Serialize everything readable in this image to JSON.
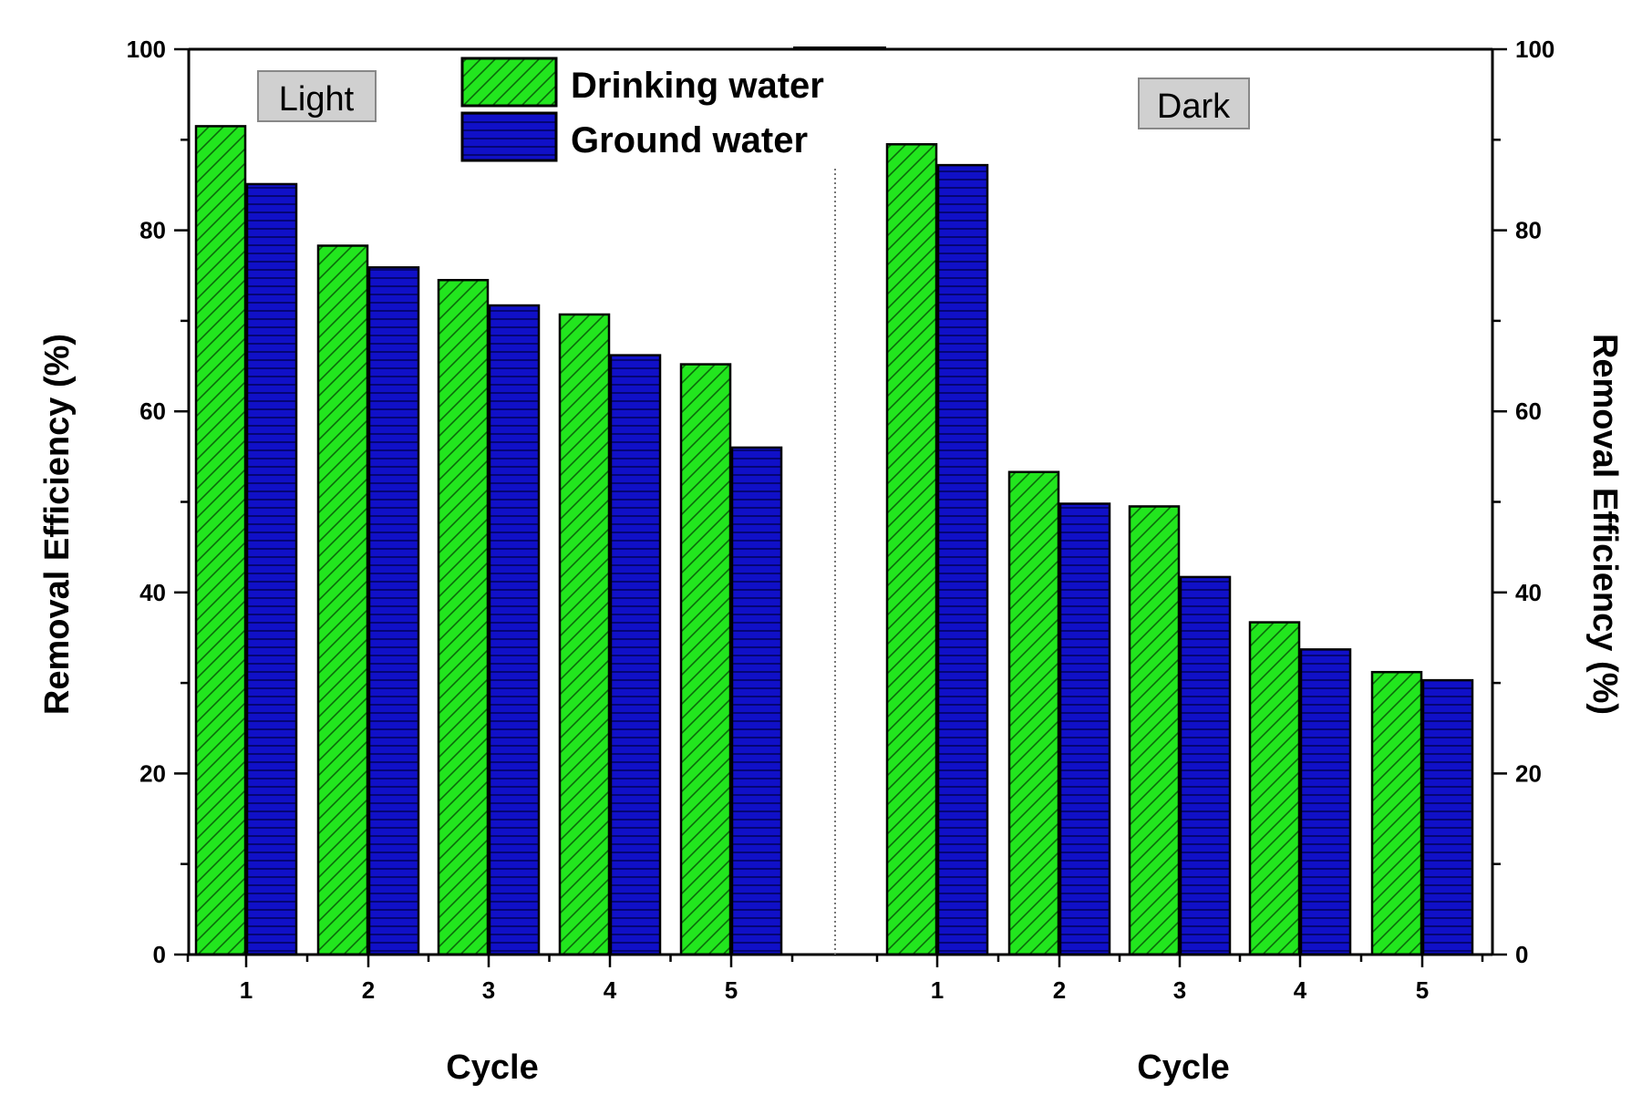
{
  "chart_data": {
    "type": "bar",
    "categories": [
      "1",
      "2",
      "3",
      "4",
      "5"
    ],
    "panels": [
      {
        "label": "Light",
        "xlabel": "Cycle",
        "series": [
          {
            "name": "Drinking water",
            "values": [
              91.5,
              78.3,
              74.5,
              70.7,
              65.2
            ]
          },
          {
            "name": "Ground water",
            "values": [
              85.1,
              75.9,
              71.7,
              66.2,
              56.0
            ]
          }
        ]
      },
      {
        "label": "Dark",
        "xlabel": "Cycle",
        "series": [
          {
            "name": "Drinking water",
            "values": [
              89.5,
              53.3,
              49.5,
              36.7,
              31.2
            ]
          },
          {
            "name": "Ground water",
            "values": [
              87.2,
              49.8,
              41.7,
              33.7,
              30.3
            ]
          }
        ]
      }
    ],
    "ylabel": "Removal Efficiency (%)",
    "ylabel_right": "Removal Efficiency (%)",
    "ylim": [
      0,
      100
    ],
    "yticks": [
      "0",
      "20",
      "40",
      "60",
      "80",
      "100"
    ],
    "legend": [
      {
        "name": "Drinking water",
        "color": "#22e61e",
        "pattern": "diagonal-hatch"
      },
      {
        "name": "Ground water",
        "color": "#1010c8",
        "pattern": "horizontal-hatch"
      }
    ],
    "legend_position": "top-center",
    "colors": {
      "drinking": "#22e61e",
      "ground": "#1010c8",
      "panel_label_bg": "#d0d0d0"
    }
  }
}
